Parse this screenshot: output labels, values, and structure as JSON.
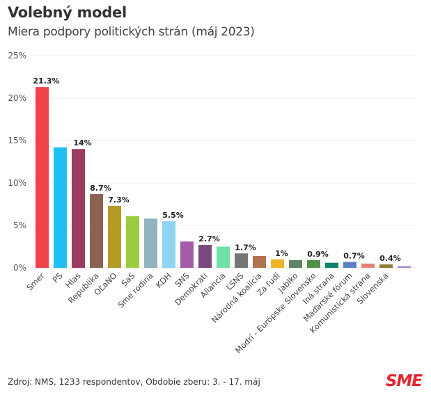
{
  "header": {
    "title": "Volebný model",
    "subtitle": "Miera podpory politických strán (máj 2023)"
  },
  "footer": {
    "source": "Zdroj: NMS, 1233 respondentov, Obdobie zberu: 3. - 17. máj",
    "logo": "SME"
  },
  "chart_data": {
    "type": "bar",
    "title": "Volebný model",
    "subtitle": "Miera podpory politických strán (máj 2023)",
    "xlabel": "",
    "ylabel": "",
    "ylim": [
      0,
      25
    ],
    "yticks": [
      0,
      5,
      10,
      15,
      20,
      25
    ],
    "ytick_format": "{v}%",
    "grid": true,
    "legend": "none",
    "categories": [
      "Smer",
      "PS",
      "Hlas",
      "Republika",
      "OĽaNO",
      "SaS",
      "Sme rodina",
      "KDH",
      "SNS",
      "Demokrati",
      "Aliancia",
      "ĽSNS",
      "Národná koalícia",
      "Za ľudí",
      "Jablko",
      "Modrí - Európske Slovensko",
      "Iná strana",
      "Maďarské fórum",
      "Komunistická strana",
      "Slovenska",
      ""
    ],
    "values": [
      21.3,
      14.2,
      14,
      8.7,
      7.3,
      6.1,
      5.8,
      5.5,
      3.1,
      2.7,
      2.5,
      1.7,
      1.4,
      1,
      0.9,
      0.9,
      0.6,
      0.7,
      0.5,
      0.4,
      0.2
    ],
    "data_labels": [
      "21.3%",
      "",
      "14%",
      "8.7%",
      "7.3%",
      "",
      "",
      "5.5%",
      "",
      "2.7%",
      "",
      "1.7%",
      "",
      "1%",
      "",
      "0.9%",
      "",
      "0.7%",
      "",
      "0.4%",
      ""
    ],
    "colors": [
      "#ef4249",
      "#1fc1f5",
      "#9b3c5e",
      "#8b6350",
      "#b59a25",
      "#9ccb3f",
      "#92b3c0",
      "#8fd4f2",
      "#a55ba7",
      "#7a4a7e",
      "#6ee0a8",
      "#767676",
      "#b07252",
      "#f0b323",
      "#5f8366",
      "#4f9148",
      "#12836b",
      "#5c80c4",
      "#e4827a",
      "#8d7c35",
      "#a68ad1"
    ]
  }
}
